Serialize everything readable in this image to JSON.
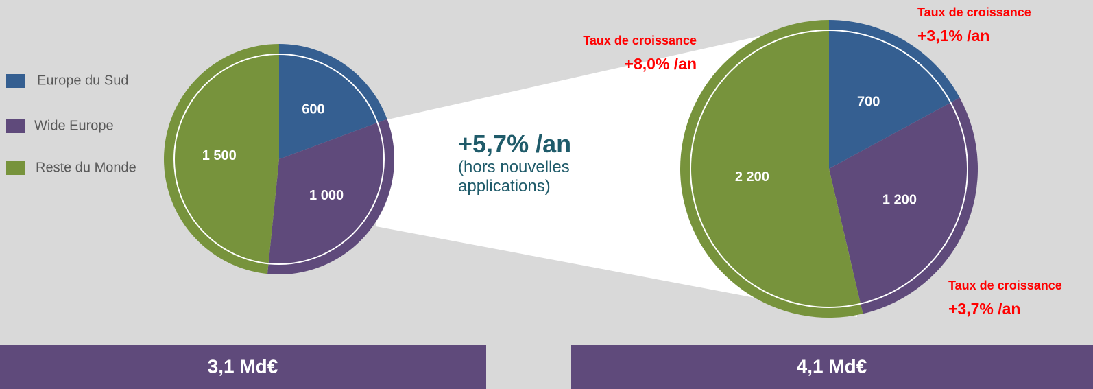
{
  "chart_data": [
    {
      "type": "pie",
      "title": "3,1 Md€",
      "categories": [
        "Europe du Sud",
        "Wide Europe",
        "Reste du Monde"
      ],
      "values": [
        600,
        1000,
        1500
      ],
      "value_labels": [
        "600",
        "1 000",
        "1 500"
      ],
      "colors": [
        "#355f91",
        "#5f4a7b",
        "#77933c"
      ],
      "legend": true
    },
    {
      "type": "pie",
      "title": "4,1 Md€",
      "categories": [
        "Europe du Sud",
        "Wide Europe",
        "Reste du Monde"
      ],
      "values": [
        700,
        1200,
        2200
      ],
      "value_labels": [
        "700",
        "1 200",
        "2 200"
      ],
      "colors": [
        "#355f91",
        "#5f4a7b",
        "#77933c"
      ],
      "growth_title": "Taux de croissance",
      "growth_labels": [
        "+3,1% /an",
        "+3,7% /an",
        "+8,0% /an"
      ]
    }
  ],
  "annotation": {
    "title": "+5,7% /an",
    "note": "(hors nouvelles applications)"
  }
}
